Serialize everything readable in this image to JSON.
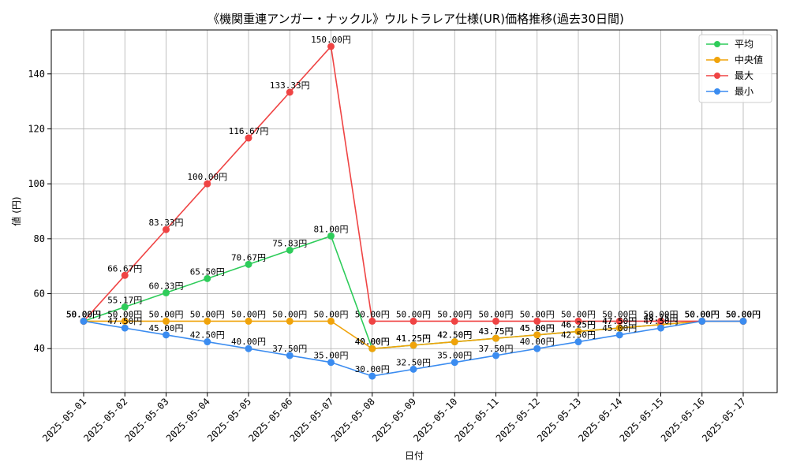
{
  "chart_data": {
    "type": "line",
    "title": "《機関重連アンガー・ナックル》ウルトラレア仕様(UR)価格推移(過去30日間)",
    "xlabel": "日付",
    "ylabel": "値 (円)",
    "ylim": [
      24,
      156
    ],
    "yticks": [
      40,
      60,
      80,
      100,
      120,
      140
    ],
    "grid": true,
    "legend_position": "top-right",
    "categories": [
      "2025-05-01",
      "2025-05-02",
      "2025-05-03",
      "2025-05-04",
      "2025-05-05",
      "2025-05-06",
      "2025-05-07",
      "2025-05-08",
      "2025-05-09",
      "2025-05-10",
      "2025-05-11",
      "2025-05-12",
      "2025-05-13",
      "2025-05-14",
      "2025-05-15",
      "2025-05-16",
      "2025-05-17"
    ],
    "series": [
      {
        "name": "平均",
        "color": "#2ecc5a",
        "values": [
          50.0,
          55.17,
          60.33,
          65.5,
          70.67,
          75.83,
          81.0,
          40.0,
          41.25,
          42.5,
          43.75,
          45.0,
          46.25,
          47.5,
          48.75,
          50.0,
          50.0
        ],
        "labels": [
          "50.00円",
          "55.17円",
          "60.33円",
          "65.50円",
          "70.67円",
          "75.83円",
          "81.00円",
          "40.00円",
          "41.25円",
          "42.50円",
          "43.75円",
          "45.00円",
          "46.25円",
          "47.50円",
          "48.75円",
          "50.00円",
          "50.00円"
        ]
      },
      {
        "name": "中央値",
        "color": "#f0a30a",
        "values": [
          50.0,
          50.0,
          50.0,
          50.0,
          50.0,
          50.0,
          50.0,
          40.0,
          41.25,
          42.5,
          43.75,
          45.0,
          46.25,
          47.5,
          48.75,
          50.0,
          50.0
        ],
        "labels": [
          "50.00円",
          "50.00円",
          "50.00円",
          "50.00円",
          "50.00円",
          "50.00円",
          "50.00円",
          "40.00円",
          "41.25円",
          "42.50円",
          "43.75円",
          "45.00円",
          "46.25円",
          "47.50円",
          "48.75円",
          "50.00円",
          "50.00円"
        ]
      },
      {
        "name": "最大",
        "color": "#ef4444",
        "values": [
          50.0,
          66.67,
          83.33,
          100.0,
          116.67,
          133.33,
          150.0,
          50.0,
          50.0,
          50.0,
          50.0,
          50.0,
          50.0,
          50.0,
          50.0,
          50.0,
          50.0
        ],
        "labels": [
          "50.00円",
          "66.67円",
          "83.33円",
          "100.00円",
          "116.67円",
          "133.33円",
          "150.00円",
          "50.00円",
          "50.00円",
          "50.00円",
          "50.00円",
          "50.00円",
          "50.00円",
          "50.00円",
          "50.00円",
          "50.00円",
          "50.00円"
        ]
      },
      {
        "name": "最小",
        "color": "#3b8cf0",
        "values": [
          50.0,
          47.5,
          45.0,
          42.5,
          40.0,
          37.5,
          35.0,
          30.0,
          32.5,
          35.0,
          37.5,
          40.0,
          42.5,
          45.0,
          47.5,
          50.0,
          50.0
        ],
        "labels": [
          "50.00円",
          "47.50円",
          "45.00円",
          "42.50円",
          "40.00円",
          "37.50円",
          "35.00円",
          "30.00円",
          "32.50円",
          "35.00円",
          "37.50円",
          "40.00円",
          "42.50円",
          "45.00円",
          "47.50円",
          "50.00円",
          "50.00円"
        ]
      }
    ]
  }
}
